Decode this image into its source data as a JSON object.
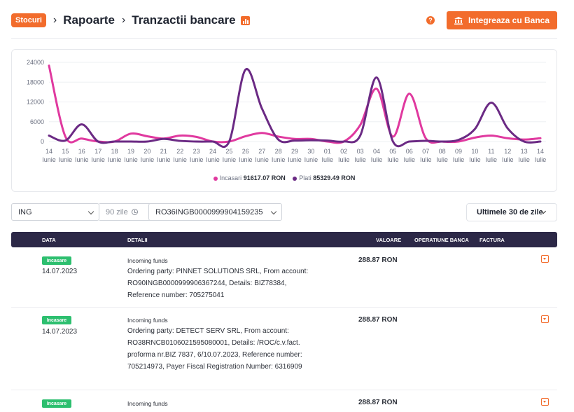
{
  "header": {
    "chip": "Stocuri",
    "crumb1": "Rapoarte",
    "crumb2": "Tranzactii bancare",
    "help": "?",
    "integrate_button": "Integreaza cu Banca"
  },
  "chart_data": {
    "type": "line",
    "y_ticks": [
      "24000",
      "18000",
      "12000",
      "6000",
      "0"
    ],
    "ylim": [
      0,
      24000
    ],
    "categories": [
      [
        "14",
        "Iunie"
      ],
      [
        "15",
        "Iunie"
      ],
      [
        "16",
        "Iunie"
      ],
      [
        "17",
        "Iunie"
      ],
      [
        "18",
        "Iunie"
      ],
      [
        "19",
        "Iunie"
      ],
      [
        "20",
        "Iunie"
      ],
      [
        "21",
        "Iunie"
      ],
      [
        "22",
        "Iunie"
      ],
      [
        "23",
        "Iunie"
      ],
      [
        "24",
        "Iunie"
      ],
      [
        "25",
        "Iunie"
      ],
      [
        "26",
        "Iunie"
      ],
      [
        "27",
        "Iunie"
      ],
      [
        "28",
        "Iunie"
      ],
      [
        "29",
        "Iunie"
      ],
      [
        "30",
        "Iunie"
      ],
      [
        "01",
        "Iulie"
      ],
      [
        "02",
        "Iulie"
      ],
      [
        "03",
        "Iulie"
      ],
      [
        "04",
        "Iulie"
      ],
      [
        "05",
        "Iulie"
      ],
      [
        "06",
        "Iulie"
      ],
      [
        "07",
        "Iulie"
      ],
      [
        "08",
        "Iulie"
      ],
      [
        "09",
        "Iulie"
      ],
      [
        "10",
        "Iulie"
      ],
      [
        "11",
        "Iulie"
      ],
      [
        "12",
        "Iulie"
      ],
      [
        "13",
        "Iulie"
      ],
      [
        "14",
        "Iulie"
      ]
    ],
    "series": [
      {
        "name": "Incasari",
        "color": "#e0399f",
        "values": [
          23000,
          1500,
          900,
          0,
          0,
          2400,
          1600,
          900,
          1800,
          1400,
          0,
          0,
          1600,
          2600,
          1500,
          800,
          800,
          0,
          0,
          5000,
          16000,
          1500,
          14500,
          1000,
          0,
          0,
          1200,
          1800,
          1000,
          600,
          1000
        ]
      },
      {
        "name": "Plati",
        "color": "#6b2a84",
        "values": [
          1800,
          300,
          5200,
          0,
          0,
          0,
          0,
          800,
          200,
          0,
          0,
          0,
          21800,
          10000,
          600,
          300,
          400,
          300,
          0,
          1800,
          19400,
          0,
          0,
          200,
          0,
          500,
          3800,
          11800,
          4000,
          0,
          0
        ]
      }
    ],
    "legend": [
      {
        "label": "Incasari",
        "total": "91617.07 RON",
        "color": "#e0399f"
      },
      {
        "label": "Plati",
        "total": "85329.49 RON",
        "color": "#6b2a84"
      }
    ]
  },
  "filters": {
    "bank": "ING",
    "days": "90 zile",
    "account": "RO36INGB0000999904159235",
    "period": "Ultimele 30 de zile"
  },
  "table": {
    "columns": [
      "DATA",
      "DETALII",
      "VALOARE",
      "OPERATIUNE BANCA",
      "FACTURA"
    ],
    "rows": [
      {
        "badge": "Incasare",
        "date": "14.07.2023",
        "kind": "Incoming funds",
        "details": "Ordering party: PINNET SOLUTIONS SRL, From account: RO90INGB0000999906367244, Details: BIZ78384, Reference number: 705275041",
        "value": "288.87 RON"
      },
      {
        "badge": "Incasare",
        "date": "14.07.2023",
        "kind": "Incoming funds",
        "details": "Ordering party: DETECT SERV SRL, From account: RO38RNCB0106021595080001, Details: /ROC/c.v.fact. proforma nr.BIZ 7837, 6/10.07.2023, Reference number: 705214973, Payer Fiscal Registration Number: 6316909",
        "value": "288.87 RON"
      },
      {
        "badge": "Incasare",
        "date": "",
        "kind": "Incoming funds",
        "details": "",
        "value": "288.87 RON"
      }
    ]
  }
}
